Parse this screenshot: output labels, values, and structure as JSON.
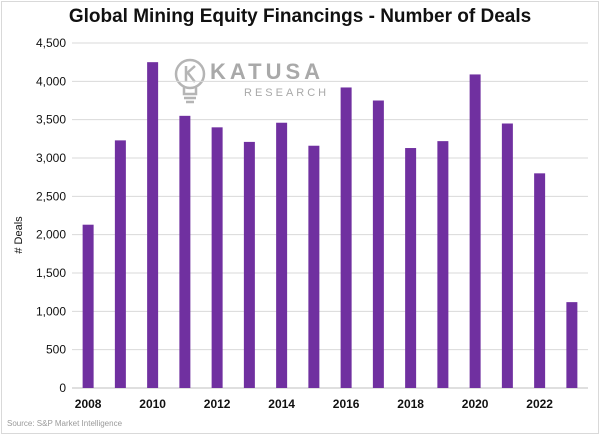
{
  "title": "Global Mining Equity Financings - Number of Deals",
  "source": "Source: S&P Market Intelligence",
  "watermark": {
    "word": "KATUSA",
    "sub": "RESEARCH",
    "icon": "lightbulb-k-icon"
  },
  "colors": {
    "bar": "#7030a0",
    "grid": "#d9d9d9",
    "axis": "#bfbfbf",
    "text": "#111111"
  },
  "chart_data": {
    "type": "bar",
    "title": "Global Mining Equity Financings - Number of Deals",
    "xlabel": "",
    "ylabel": "# Deals",
    "categories": [
      "2008",
      "2009",
      "2010",
      "2011",
      "2012",
      "2013",
      "2014",
      "2015",
      "2016",
      "2017",
      "2018",
      "2019",
      "2020",
      "2021",
      "2022",
      "2023"
    ],
    "x_tick_labels": [
      "2008",
      "",
      "2010",
      "",
      "2012",
      "",
      "2014",
      "",
      "2016",
      "",
      "2018",
      "",
      "2020",
      "",
      "2022",
      ""
    ],
    "values": [
      2130,
      3230,
      4250,
      3550,
      3400,
      3210,
      3460,
      3160,
      3920,
      3750,
      3130,
      3220,
      4090,
      3450,
      2800,
      1120
    ],
    "ylim": [
      0,
      4500
    ],
    "yticks": [
      0,
      500,
      1000,
      1500,
      2000,
      2500,
      3000,
      3500,
      4000,
      4500
    ],
    "ytick_labels": [
      "0",
      "500",
      "1,000",
      "1,500",
      "2,000",
      "2,500",
      "3,000",
      "3,500",
      "4,000",
      "4,500"
    ],
    "grid": true,
    "legend": "none"
  }
}
